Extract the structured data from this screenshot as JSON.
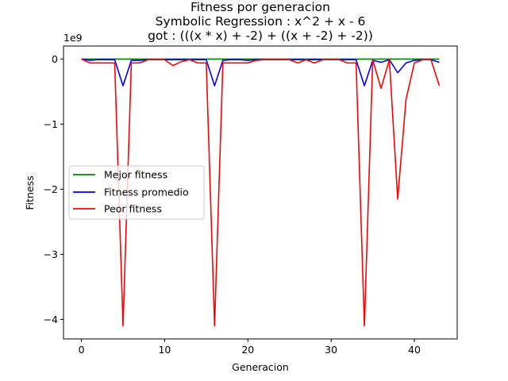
{
  "chart_data": {
    "type": "line",
    "title_lines": [
      "Fitness por generacion",
      "Symbolic Regression : x^2 + x - 6",
      "got : (((x * x) + -2) + ((x + -2) + -2))"
    ],
    "xlabel": "Generacion",
    "ylabel": "Fitness",
    "offset_text": "1e9",
    "xlim": [
      -2.15,
      45.15
    ],
    "ylim": [
      -4.3,
      0.2
    ],
    "xticks": [
      0,
      10,
      20,
      30,
      40
    ],
    "yticks": [
      0,
      -1,
      -2,
      -3,
      -4
    ],
    "ytick_labels": [
      "0",
      "−1",
      "−2",
      "−3",
      "−4"
    ],
    "legend_position": "center-left",
    "x": [
      0,
      1,
      2,
      3,
      4,
      5,
      6,
      7,
      8,
      9,
      10,
      11,
      12,
      13,
      14,
      15,
      16,
      17,
      18,
      19,
      20,
      21,
      22,
      23,
      24,
      25,
      26,
      27,
      28,
      29,
      30,
      31,
      32,
      33,
      34,
      35,
      36,
      37,
      38,
      39,
      40,
      41,
      42,
      43
    ],
    "series": [
      {
        "name": "Mejor fitness",
        "color": "#008000",
        "values": [
          0,
          0,
          0,
          0,
          0,
          0,
          0,
          0,
          0,
          0,
          0,
          0,
          0,
          0,
          0,
          0,
          0,
          0,
          0,
          0,
          0,
          0,
          0,
          0,
          0,
          0,
          0,
          0,
          0,
          0,
          0,
          0,
          0,
          0,
          0,
          0,
          0,
          0,
          0,
          0,
          0,
          0,
          0,
          0
        ]
      },
      {
        "name": "Fitness promedio",
        "color": "#0000ff",
        "values": [
          0,
          -0.02,
          -0.01,
          -0.01,
          -0.01,
          -0.41,
          -0.02,
          -0.02,
          -0.01,
          -0.01,
          -0.01,
          -0.01,
          -0.01,
          -0.01,
          -0.01,
          -0.01,
          -0.41,
          -0.02,
          -0.01,
          -0.01,
          -0.02,
          -0.01,
          -0.01,
          -0.01,
          -0.01,
          -0.01,
          -0.01,
          -0.01,
          -0.01,
          -0.01,
          -0.01,
          -0.01,
          -0.01,
          -0.01,
          -0.41,
          -0.02,
          -0.05,
          -0.01,
          -0.21,
          -0.06,
          -0.02,
          -0.01,
          -0.01,
          -0.05
        ]
      },
      {
        "name": "Peor fitness",
        "color": "#ff0000",
        "values": [
          0,
          -0.06,
          -0.06,
          -0.06,
          -0.06,
          -4.1,
          -0.06,
          -0.06,
          -0.01,
          -0.01,
          -0.01,
          -0.1,
          -0.04,
          -0.01,
          -0.06,
          -0.06,
          -4.1,
          -0.06,
          -0.06,
          -0.06,
          -0.06,
          -0.02,
          -0.01,
          -0.01,
          -0.01,
          -0.01,
          -0.06,
          -0.01,
          -0.06,
          -0.01,
          -0.01,
          -0.01,
          -0.06,
          -0.06,
          -4.1,
          -0.01,
          -0.45,
          -0.01,
          -2.15,
          -0.62,
          -0.06,
          -0.01,
          -0.01,
          -0.41
        ]
      }
    ]
  }
}
